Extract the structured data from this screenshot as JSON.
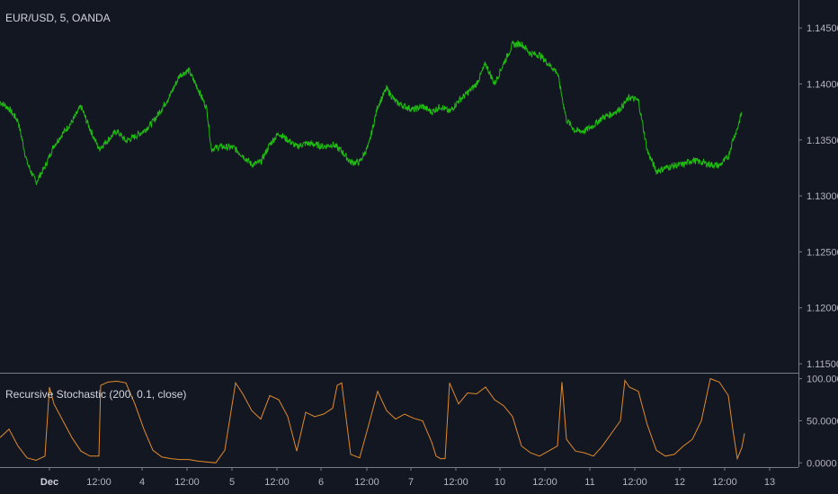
{
  "main_pane": {
    "symbol_label": "EUR/USD, 5, OANDA",
    "price_ticks": [
      "1.14500",
      "1.14000",
      "1.13500",
      "1.13000",
      "1.12500",
      "1.12000",
      "1.11500"
    ],
    "line_color": "#1fbd10"
  },
  "indicator_pane": {
    "label": "Recursive Stochastic (200, 0.1, close)",
    "value_ticks": [
      "100.0000",
      "50.0000",
      "0.0000"
    ],
    "line_color": "#e08a2a"
  },
  "time_axis": {
    "labels": [
      "Dec",
      "12:00",
      "4",
      "12:00",
      "5",
      "12:00",
      "6",
      "12:00",
      "7",
      "12:00",
      "10",
      "12:00",
      "11",
      "12:00",
      "12",
      "12:00",
      "13"
    ]
  },
  "chart_data": [
    {
      "type": "line",
      "series": [
        {
          "values": [
            [
              0,
              1.1384
            ],
            [
              10,
              1.1378
            ],
            [
              20,
              1.1367
            ],
            [
              30,
              1.133
            ],
            [
              40,
              1.1312
            ],
            [
              50,
              1.1326
            ],
            [
              60,
              1.1345
            ],
            [
              70,
              1.1356
            ],
            [
              80,
              1.1366
            ],
            [
              90,
              1.138
            ],
            [
              100,
              1.136
            ],
            [
              110,
              1.1342
            ],
            [
              120,
              1.135
            ],
            [
              130,
              1.1358
            ],
            [
              140,
              1.1349
            ],
            [
              150,
              1.1353
            ],
            [
              160,
              1.1358
            ],
            [
              170,
              1.1366
            ],
            [
              180,
              1.1378
            ],
            [
              190,
              1.1391
            ],
            [
              200,
              1.1408
            ],
            [
              210,
              1.1412
            ],
            [
              220,
              1.1396
            ],
            [
              230,
              1.1378
            ],
            [
              235,
              1.1342
            ],
            [
              245,
              1.1344
            ],
            [
              260,
              1.1343
            ],
            [
              270,
              1.1336
            ],
            [
              280,
              1.1328
            ],
            [
              290,
              1.133
            ],
            [
              300,
              1.1346
            ],
            [
              310,
              1.1356
            ],
            [
              320,
              1.135
            ],
            [
              330,
              1.1344
            ],
            [
              340,
              1.1347
            ],
            [
              350,
              1.1346
            ],
            [
              360,
              1.1344
            ],
            [
              370,
              1.1346
            ],
            [
              380,
              1.134
            ],
            [
              390,
              1.133
            ],
            [
              400,
              1.133
            ],
            [
              410,
              1.1345
            ],
            [
              420,
              1.138
            ],
            [
              430,
              1.1396
            ],
            [
              440,
              1.1384
            ],
            [
              450,
              1.138
            ],
            [
              460,
              1.1377
            ],
            [
              470,
              1.138
            ],
            [
              480,
              1.1375
            ],
            [
              490,
              1.138
            ],
            [
              500,
              1.1375
            ],
            [
              510,
              1.1385
            ],
            [
              520,
              1.1392
            ],
            [
              530,
              1.14
            ],
            [
              540,
              1.1418
            ],
            [
              550,
              1.14
            ],
            [
              560,
              1.1418
            ],
            [
              570,
              1.1435
            ],
            [
              580,
              1.1436
            ],
            [
              590,
              1.1427
            ],
            [
              600,
              1.1426
            ],
            [
              610,
              1.1418
            ],
            [
              620,
              1.141
            ],
            [
              630,
              1.1368
            ],
            [
              640,
              1.1358
            ],
            [
              650,
              1.1358
            ],
            [
              660,
              1.1363
            ],
            [
              670,
              1.137
            ],
            [
              680,
              1.1373
            ],
            [
              690,
              1.1378
            ],
            [
              700,
              1.1388
            ],
            [
              710,
              1.1385
            ],
            [
              720,
              1.134
            ],
            [
              730,
              1.1322
            ],
            [
              740,
              1.1325
            ],
            [
              750,
              1.1327
            ],
            [
              760,
              1.1328
            ],
            [
              770,
              1.1332
            ],
            [
              780,
              1.133
            ],
            [
              790,
              1.1328
            ],
            [
              800,
              1.1327
            ],
            [
              810,
              1.1335
            ],
            [
              815,
              1.135
            ],
            [
              820,
              1.136
            ],
            [
              825,
              1.1375
            ]
          ]
        }
      ],
      "ylim": [
        1.1142,
        1.1475
      ],
      "y_ticks": [
        1.145,
        1.14,
        1.135,
        1.13,
        1.125,
        1.12,
        1.115
      ]
    },
    {
      "type": "line",
      "series": [
        {
          "values": [
            [
              0,
              30
            ],
            [
              10,
              40
            ],
            [
              20,
              20
            ],
            [
              30,
              6
            ],
            [
              40,
              3
            ],
            [
              50,
              8
            ],
            [
              55,
              90
            ],
            [
              60,
              70
            ],
            [
              70,
              50
            ],
            [
              80,
              30
            ],
            [
              90,
              14
            ],
            [
              100,
              8
            ],
            [
              110,
              8
            ],
            [
              112,
              92
            ],
            [
              120,
              96
            ],
            [
              130,
              97
            ],
            [
              140,
              95
            ],
            [
              150,
              70
            ],
            [
              160,
              40
            ],
            [
              170,
              15
            ],
            [
              180,
              7
            ],
            [
              190,
              5
            ],
            [
              200,
              4
            ],
            [
              210,
              4
            ],
            [
              220,
              2
            ],
            [
              240,
              0
            ],
            [
              250,
              15
            ],
            [
              262,
              95
            ],
            [
              270,
              82
            ],
            [
              280,
              62
            ],
            [
              290,
              52
            ],
            [
              300,
              80
            ],
            [
              310,
              75
            ],
            [
              320,
              55
            ],
            [
              330,
              14
            ],
            [
              340,
              60
            ],
            [
              350,
              55
            ],
            [
              360,
              58
            ],
            [
              370,
              65
            ],
            [
              375,
              92
            ],
            [
              380,
              95
            ],
            [
              390,
              10
            ],
            [
              395,
              8
            ],
            [
              400,
              6
            ],
            [
              410,
              45
            ],
            [
              420,
              85
            ],
            [
              430,
              62
            ],
            [
              440,
              52
            ],
            [
              450,
              58
            ],
            [
              460,
              53
            ],
            [
              470,
              50
            ],
            [
              480,
              25
            ],
            [
              485,
              8
            ],
            [
              490,
              5
            ],
            [
              495,
              5
            ],
            [
              500,
              95
            ],
            [
              510,
              70
            ],
            [
              520,
              83
            ],
            [
              530,
              82
            ],
            [
              540,
              90
            ],
            [
              550,
              75
            ],
            [
              560,
              68
            ],
            [
              570,
              55
            ],
            [
              580,
              20
            ],
            [
              590,
              12
            ],
            [
              600,
              8
            ],
            [
              610,
              14
            ],
            [
              620,
              20
            ],
            [
              625,
              96
            ],
            [
              630,
              28
            ],
            [
              640,
              14
            ],
            [
              650,
              12
            ],
            [
              660,
              8
            ],
            [
              670,
              20
            ],
            [
              680,
              35
            ],
            [
              690,
              50
            ],
            [
              695,
              98
            ],
            [
              700,
              90
            ],
            [
              710,
              85
            ],
            [
              720,
              45
            ],
            [
              730,
              15
            ],
            [
              740,
              8
            ],
            [
              750,
              10
            ],
            [
              760,
              20
            ],
            [
              770,
              28
            ],
            [
              780,
              50
            ],
            [
              790,
              100
            ],
            [
              800,
              96
            ],
            [
              810,
              80
            ],
            [
              815,
              40
            ],
            [
              820,
              5
            ],
            [
              825,
              18
            ],
            [
              828,
              35
            ]
          ]
        }
      ],
      "ylim": [
        -5,
        106
      ],
      "y_ticks": [
        100,
        50,
        0
      ]
    }
  ]
}
